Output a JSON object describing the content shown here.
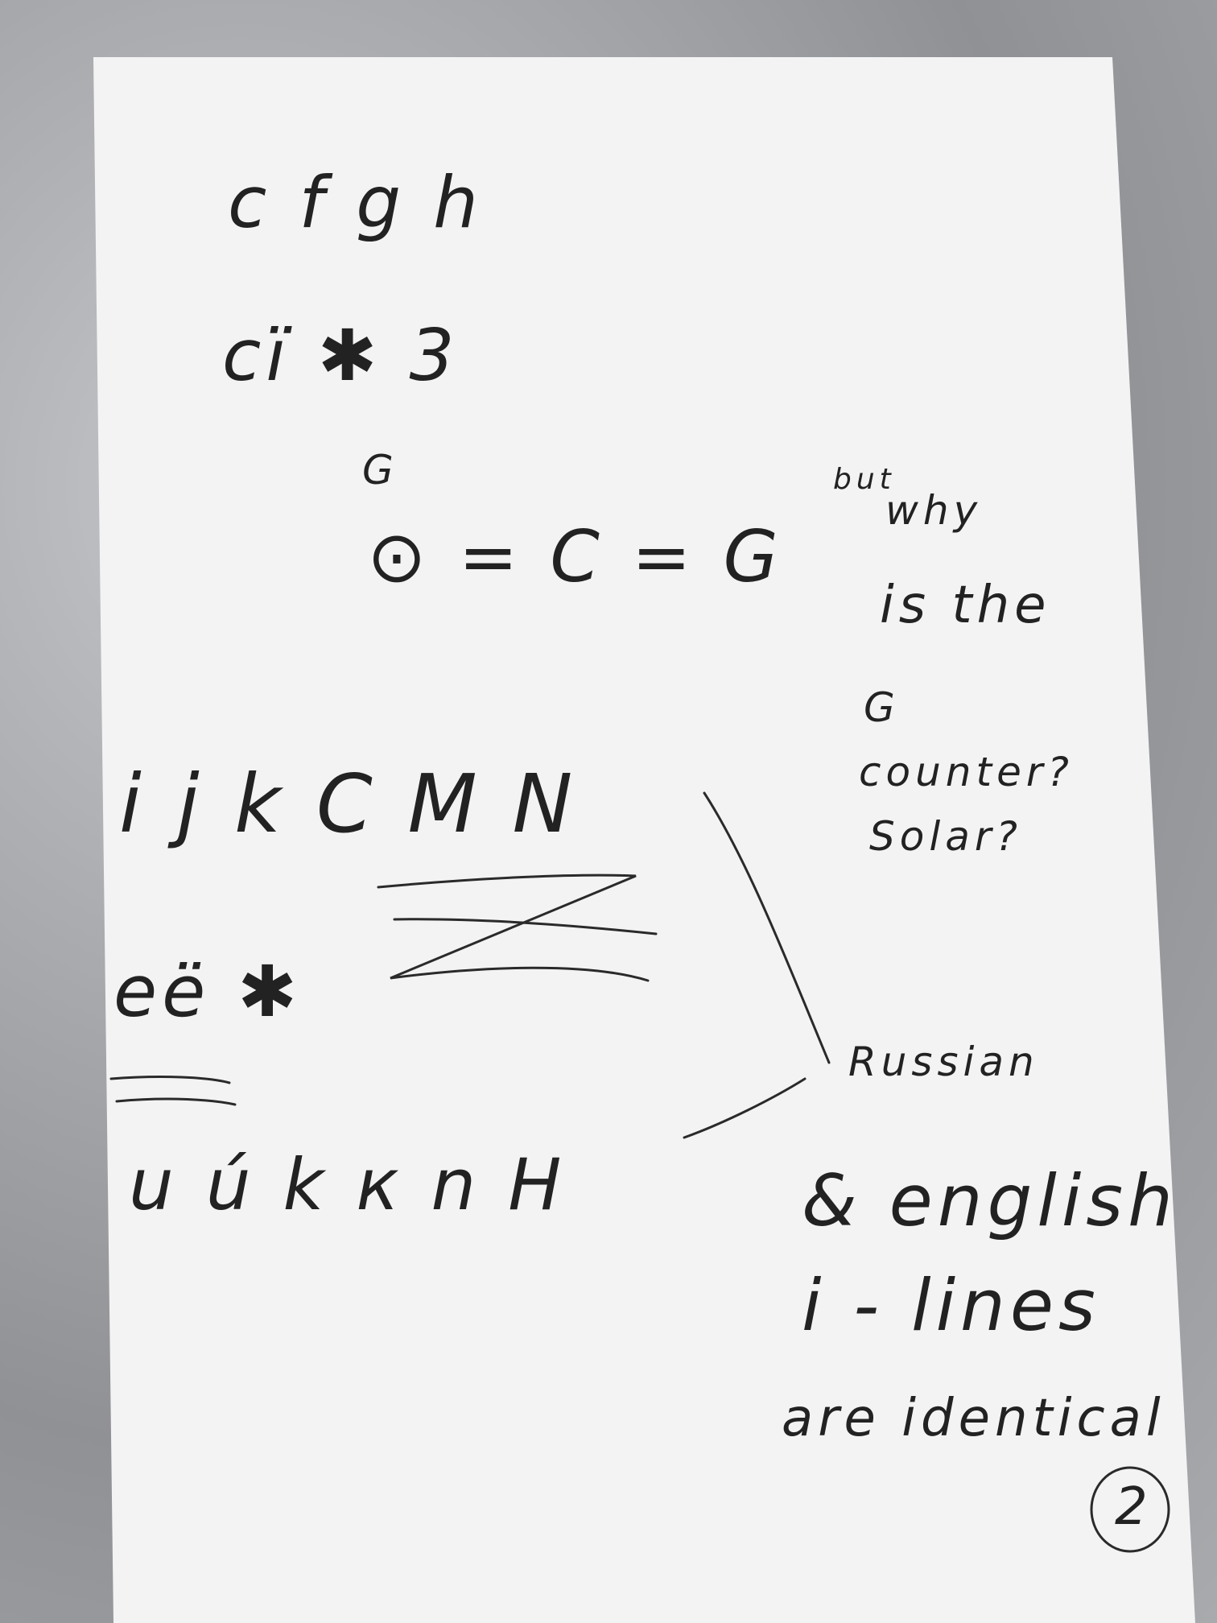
{
  "left_column": {
    "row_1": "c f g h",
    "row_2": "cï ✱ 3",
    "row_3": "G",
    "row_4": "⊙ = C = G",
    "row_5": "i j k C M N",
    "row_6": "eë ✱",
    "row_7": "u ú k к n H"
  },
  "side_note_top": {
    "line_1": "but",
    "line_2": "why",
    "line_3": "is the",
    "line_4": "G",
    "line_5": "counter?",
    "line_6": "Solar?"
  },
  "side_note_bottom": {
    "line_1": "Russian",
    "line_2": "& english",
    "line_3": "i - lines",
    "line_4": "are identical"
  },
  "page_number": "2"
}
